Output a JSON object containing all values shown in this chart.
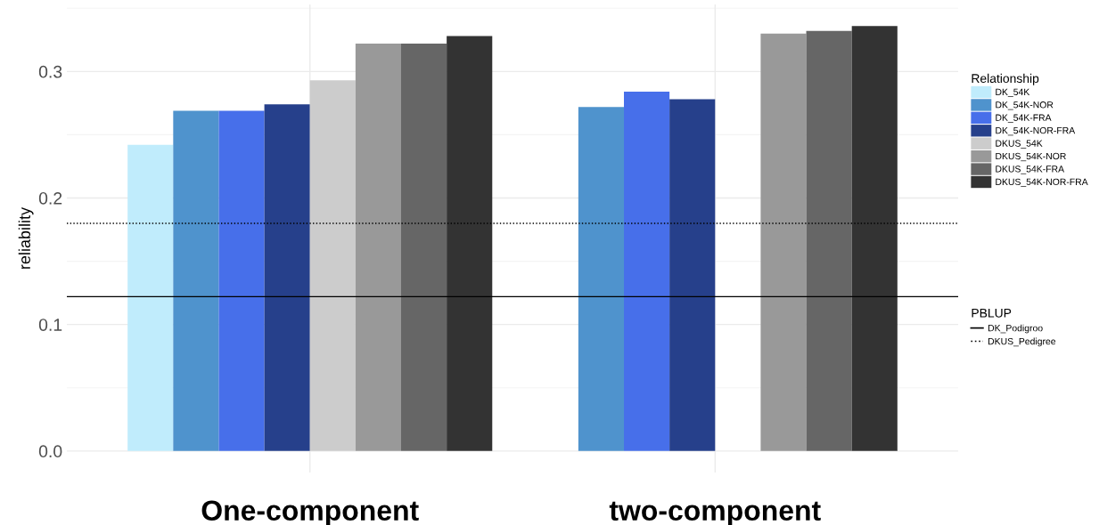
{
  "chart_data": {
    "type": "bar",
    "ylabel": "reliability",
    "legend_title": "Relationship",
    "categories": [
      "One-component",
      "two-component"
    ],
    "series": [
      {
        "name": "DK_54K",
        "color": "#c0ecfc",
        "values": [
          0.242,
          null
        ]
      },
      {
        "name": "DK_54K-NOR",
        "color": "#4f93cd",
        "values": [
          0.269,
          0.272
        ]
      },
      {
        "name": "DK_54K-FRA",
        "color": "#476fea",
        "values": [
          0.269,
          0.284
        ]
      },
      {
        "name": "DK_54K-NOR-FRA",
        "color": "#26408b",
        "values": [
          0.274,
          0.278
        ]
      },
      {
        "name": "DKUS_54K",
        "color": "#cccccc",
        "values": [
          0.293,
          null
        ]
      },
      {
        "name": "DKUS_54K-NOR",
        "color": "#999999",
        "values": [
          0.322,
          0.33
        ]
      },
      {
        "name": "DKUS_54K-FRA",
        "color": "#666666",
        "values": [
          0.322,
          0.332
        ]
      },
      {
        "name": "DKUS_54K-NOR-FRA",
        "color": "#333333",
        "values": [
          0.328,
          0.336
        ]
      }
    ],
    "ref_lines": [
      {
        "axis": "y",
        "value": 0.122,
        "label": "DK_Podigroo",
        "color": "#000000",
        "line_style": "solid"
      },
      {
        "axis": "y",
        "value": 0.18,
        "label": "DKUS_Pedigree",
        "color": "#000000",
        "line_style": "dotted"
      }
    ],
    "annotations": [
      "PBLUP"
    ],
    "ylim": [
      -0.017,
      0.353
    ],
    "yticks": [
      {
        "value": 0,
        "label": "0.0"
      },
      {
        "value": 0.1,
        "label": "0.1"
      },
      {
        "value": 0.2,
        "label": "0.2"
      },
      {
        "value": 0.3,
        "label": "0.3"
      }
    ],
    "grid": true,
    "legend": "right"
  }
}
